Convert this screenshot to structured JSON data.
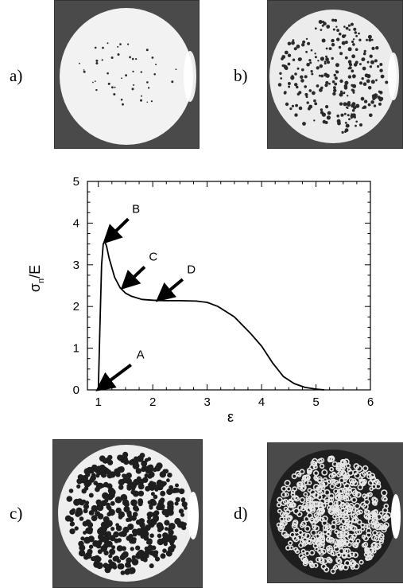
{
  "panels": {
    "a": {
      "label": "a)"
    },
    "b": {
      "label": "b)"
    },
    "c": {
      "label": "c)"
    },
    "d": {
      "label": "d)"
    }
  },
  "colors": {
    "photo_frame": "#4a4a4a",
    "droplet": "#2a2a2a",
    "film_light": "#eeeeee",
    "film_dark": "#1e1e1e"
  },
  "chart_data": {
    "type": "line",
    "xlabel": "ε",
    "ylabel": "σn/E",
    "ylabel_main": "σ",
    "ylabel_sub": "n",
    "ylabel_tail": "/E",
    "xlim": [
      0.8,
      6
    ],
    "ylim": [
      0,
      5
    ],
    "x_ticks": [
      1,
      2,
      3,
      4,
      5,
      6
    ],
    "y_ticks": [
      0,
      1,
      2,
      3,
      4,
      5
    ],
    "grid": false,
    "series": [
      {
        "x": [
          1.0,
          1.03,
          1.06,
          1.09,
          1.12,
          1.15,
          1.2,
          1.3,
          1.4,
          1.5,
          1.6,
          1.8,
          2.0,
          2.2,
          2.5,
          2.8,
          3.0,
          3.2,
          3.5,
          3.8,
          4.0,
          4.2,
          4.4,
          4.6,
          4.8,
          5.0,
          5.15
        ],
        "y": [
          0.0,
          1.5,
          3.0,
          3.5,
          3.55,
          3.45,
          3.15,
          2.7,
          2.45,
          2.32,
          2.25,
          2.17,
          2.15,
          2.14,
          2.14,
          2.13,
          2.1,
          2.0,
          1.75,
          1.35,
          1.05,
          0.65,
          0.32,
          0.15,
          0.06,
          0.02,
          0.0
        ]
      }
    ],
    "annotations": [
      {
        "text": "A",
        "point": [
          1.0,
          0.0
        ],
        "arrow_from": [
          1.6,
          0.6
        ],
        "text_at": [
          1.7,
          0.75
        ]
      },
      {
        "text": "B",
        "point": [
          1.12,
          3.55
        ],
        "arrow_from": [
          1.55,
          4.1
        ],
        "text_at": [
          1.62,
          4.25
        ]
      },
      {
        "text": "C",
        "point": [
          1.45,
          2.45
        ],
        "arrow_from": [
          1.85,
          2.95
        ],
        "text_at": [
          1.93,
          3.1
        ]
      },
      {
        "text": "D",
        "point": [
          2.1,
          2.15
        ],
        "arrow_from": [
          2.55,
          2.65
        ],
        "text_at": [
          2.63,
          2.8
        ]
      }
    ]
  }
}
